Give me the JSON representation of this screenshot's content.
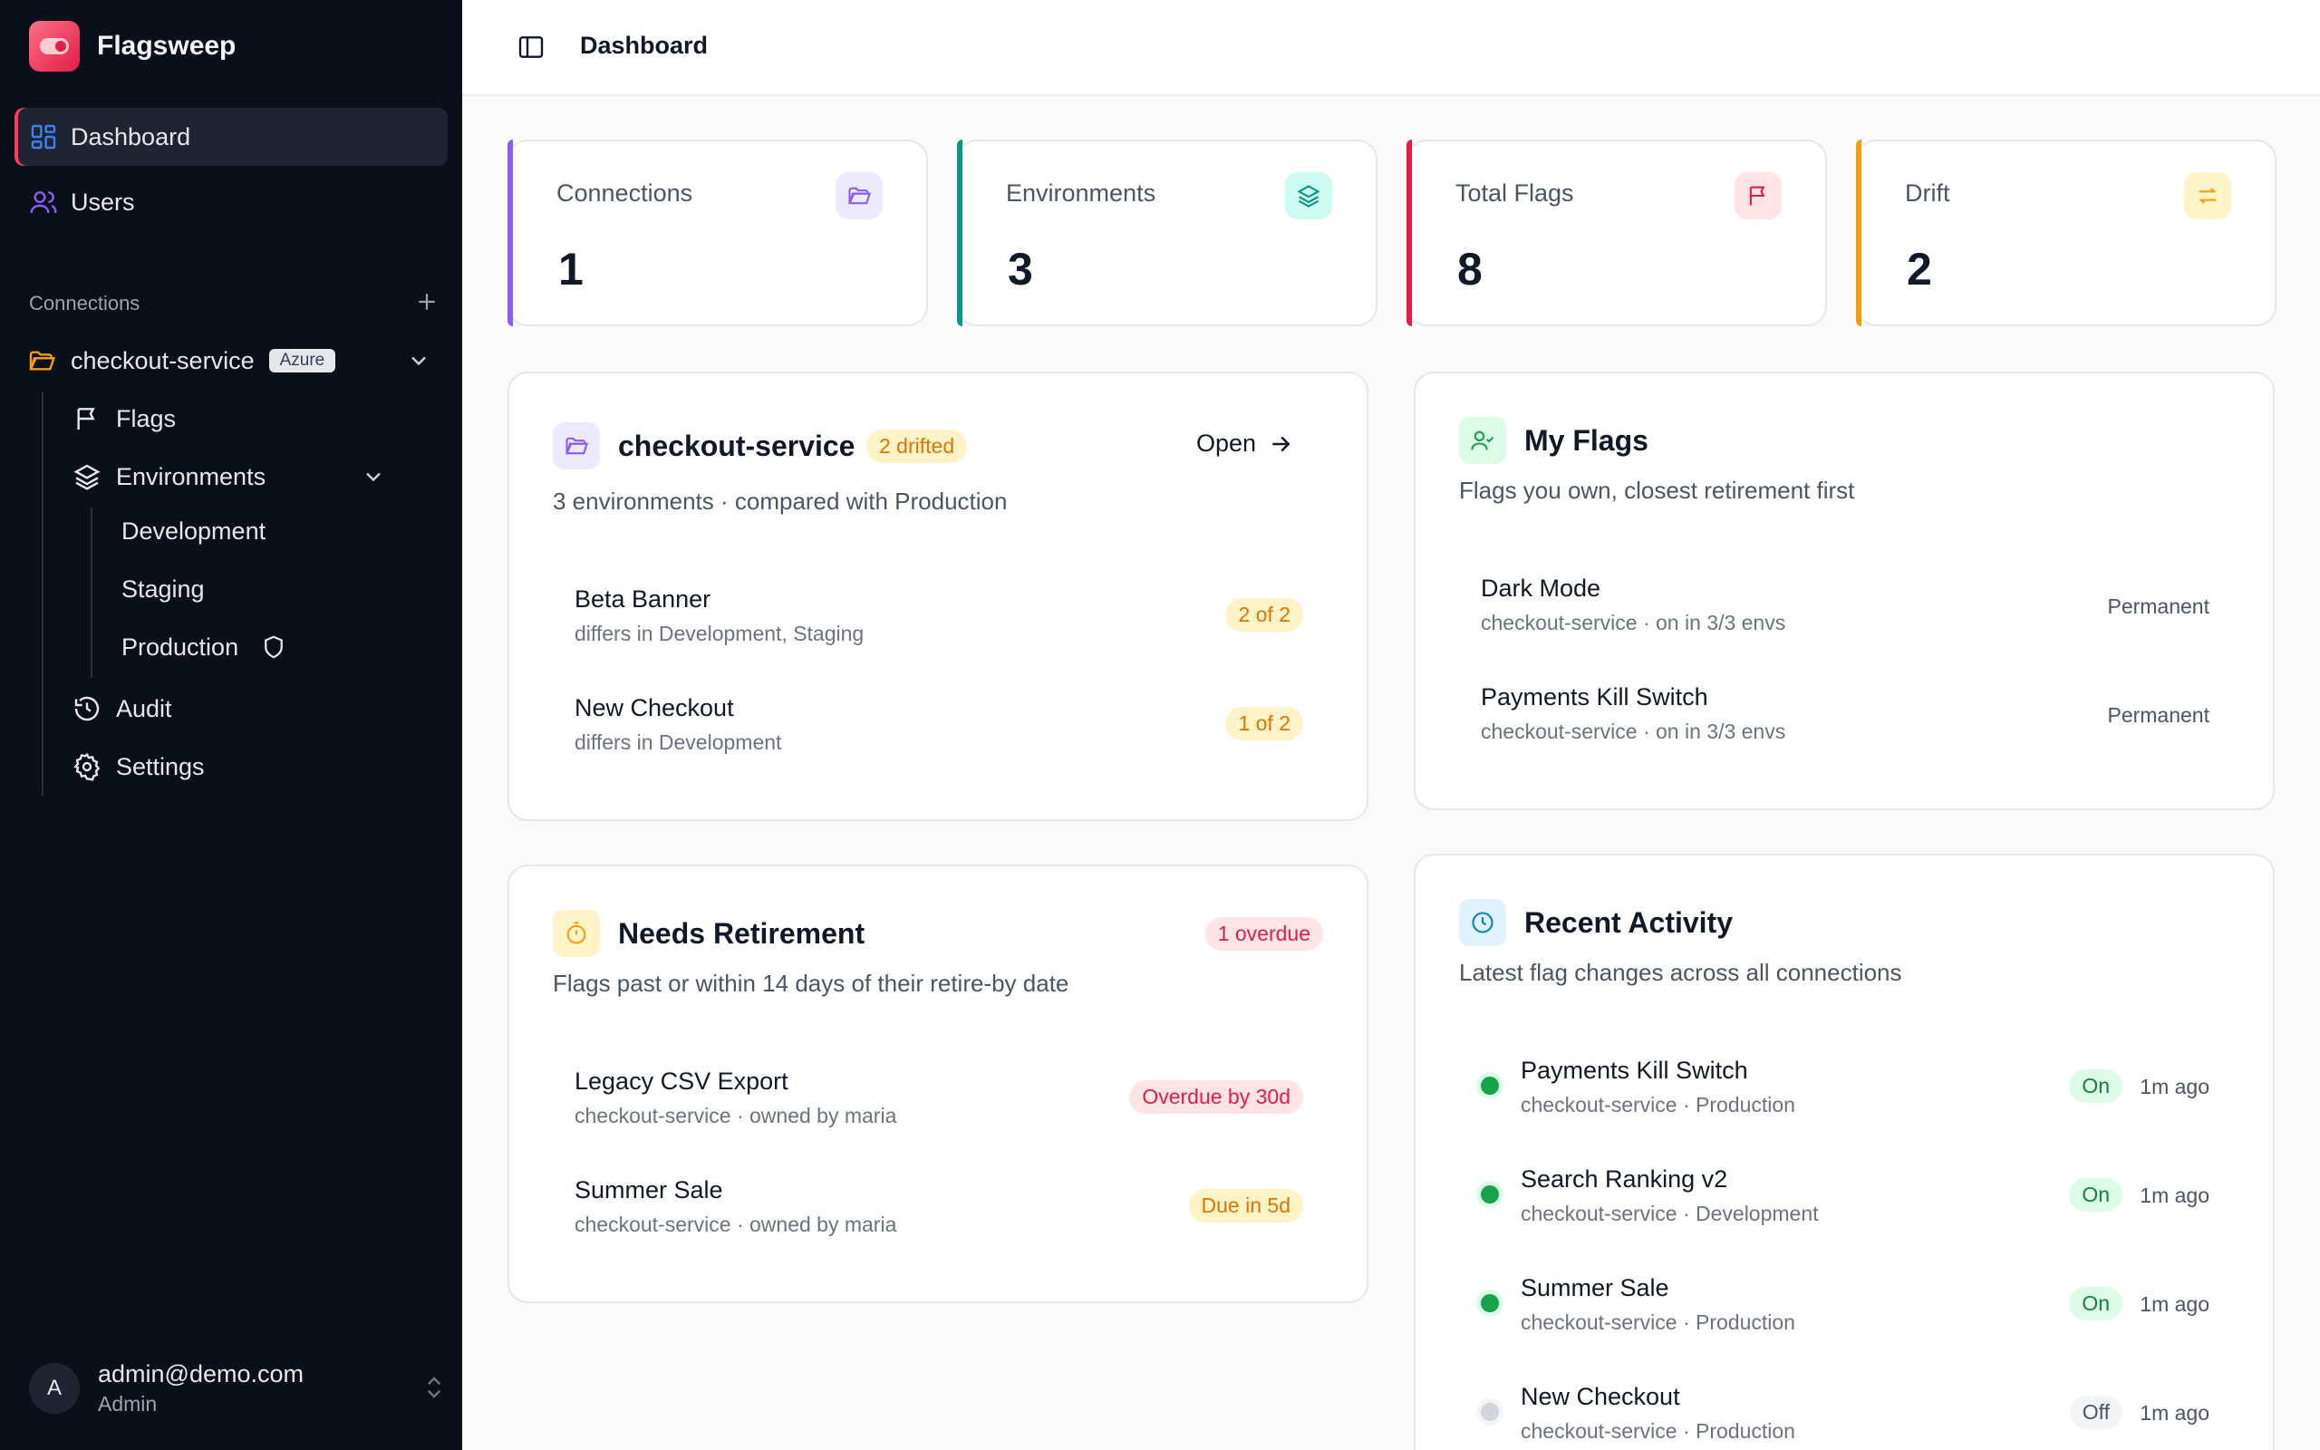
{
  "app": {
    "name": "Flagsweep"
  },
  "nav": {
    "dashboard": "Dashboard",
    "users": "Users"
  },
  "connections_section": {
    "label": "Connections",
    "connection": {
      "name": "checkout-service",
      "badge": "Azure"
    },
    "children": {
      "flags": "Flags",
      "environments": "Environments",
      "env_list": [
        "Development",
        "Staging",
        "Production"
      ],
      "audit": "Audit",
      "settings": "Settings"
    }
  },
  "user": {
    "initial": "A",
    "email": "admin@demo.com",
    "role": "Admin"
  },
  "header": {
    "title": "Dashboard"
  },
  "stats": [
    {
      "label": "Connections",
      "value": "1",
      "color": "#8b5cf6",
      "icon": "folder-icon"
    },
    {
      "label": "Environments",
      "value": "3",
      "color": "#0d9488",
      "icon": "layers-icon"
    },
    {
      "label": "Total Flags",
      "value": "8",
      "color": "#e11d48",
      "icon": "flag-icon"
    },
    {
      "label": "Drift",
      "value": "2",
      "color": "#f59e0b",
      "icon": "swap-icon"
    }
  ],
  "connection_card": {
    "title": "checkout-service",
    "badge": "2 drifted",
    "open_label": "Open",
    "subtitle": "3 environments · compared with Production",
    "rows": [
      {
        "title": "Beta Banner",
        "sub": "differs in Development, Staging",
        "badge": "2 of 2"
      },
      {
        "title": "New Checkout",
        "sub": "differs in Development",
        "badge": "1 of 2"
      }
    ]
  },
  "my_flags": {
    "title": "My Flags",
    "subtitle": "Flags you own, closest retirement first",
    "rows": [
      {
        "title": "Dark Mode",
        "sub": "checkout-service · on in 3/3 envs",
        "meta": "Permanent"
      },
      {
        "title": "Payments Kill Switch",
        "sub": "checkout-service · on in 3/3 envs",
        "meta": "Permanent"
      }
    ]
  },
  "needs_retirement": {
    "title": "Needs Retirement",
    "badge": "1 overdue",
    "subtitle": "Flags past or within 14 days of their retire-by date",
    "rows": [
      {
        "title": "Legacy CSV Export",
        "sub": "checkout-service · owned by maria",
        "badge": "Overdue by 30d"
      },
      {
        "title": "Summer Sale",
        "sub": "checkout-service · owned by maria",
        "badge": "Due in 5d"
      }
    ]
  },
  "recent_activity": {
    "title": "Recent Activity",
    "subtitle": "Latest flag changes across all connections",
    "rows": [
      {
        "title": "Payments Kill Switch",
        "sub": "checkout-service · Production",
        "state": "On",
        "time": "1m ago"
      },
      {
        "title": "Search Ranking v2",
        "sub": "checkout-service · Development",
        "state": "On",
        "time": "1m ago"
      },
      {
        "title": "Summer Sale",
        "sub": "checkout-service · Production",
        "state": "On",
        "time": "1m ago"
      },
      {
        "title": "New Checkout",
        "sub": "checkout-service · Production",
        "state": "Off",
        "time": "1m ago"
      }
    ]
  },
  "colors": {
    "brand": "#f43f5e",
    "sidebar_bg": "#0b0f1a",
    "on": "#16a34a",
    "off": "#d1d5db"
  }
}
